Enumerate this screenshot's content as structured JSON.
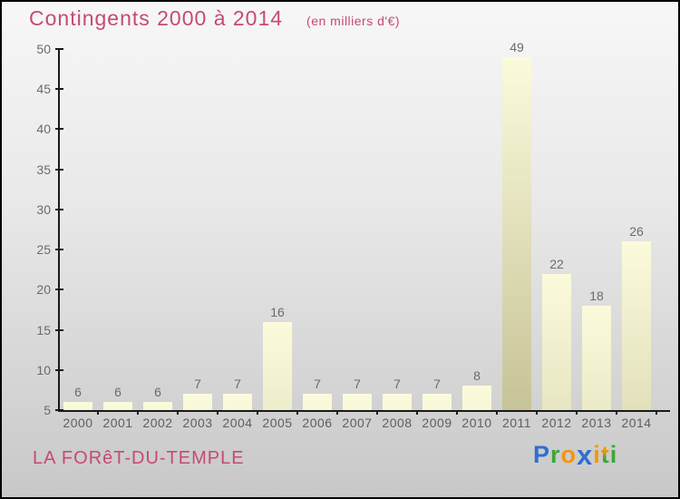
{
  "header": {
    "title": "Contingents 2000 à 2014",
    "subtitle": "(en milliers d'€)",
    "title_color": "#c64a73"
  },
  "chart_data": {
    "type": "bar",
    "title": "Contingents 2000 à 2014",
    "subtitle": "(en milliers d'€)",
    "categories": [
      "2000",
      "2001",
      "2002",
      "2003",
      "2004",
      "2005",
      "2006",
      "2007",
      "2008",
      "2009",
      "2010",
      "2011",
      "2012",
      "2013",
      "2014"
    ],
    "values": [
      6,
      6,
      6,
      7,
      7,
      16,
      7,
      7,
      7,
      7,
      8,
      49,
      22,
      18,
      26
    ],
    "xlabel": "",
    "ylabel": "",
    "ylim": [
      5,
      50
    ],
    "yticks": [
      5,
      10,
      15,
      20,
      25,
      30,
      35,
      40,
      45,
      50
    ],
    "grid": false,
    "legend": false,
    "bar_gradient_top": "#fbfbdc",
    "bar_gradient_bottom": "#c6c296",
    "axis_color": "#1a1a1a",
    "value_label_color": "#6b6b6b",
    "tick_label_color": "#5f5f5f"
  },
  "footer": {
    "location": "LA FORêT-DU-TEMPLE",
    "location_color": "#c64a73",
    "logo": {
      "name": "Proxiti",
      "letters": [
        {
          "char": "P",
          "color": "#2e6fd2"
        },
        {
          "char": "r",
          "color": "#3aa73c"
        },
        {
          "char": "o",
          "color": "#f5950f"
        },
        {
          "char": "x",
          "color": "#2e6fd2",
          "variant": "big-x"
        },
        {
          "char": "i",
          "color": "#f5950f"
        },
        {
          "char": "t",
          "color": "#f5950f",
          "color2": "#3aa73c"
        },
        {
          "char": "i",
          "color": "#3aa73c"
        }
      ]
    }
  }
}
